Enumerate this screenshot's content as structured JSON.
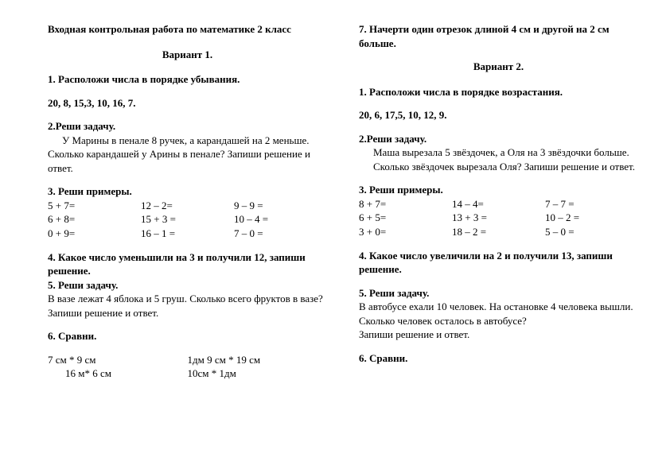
{
  "doc": {
    "title": "Входная контрольная работа по математике 2 класс",
    "variant1": "Вариант 1.",
    "variant2": "Вариант 2.",
    "v1": {
      "t1": "1. Расположи числа в порядке убывания.",
      "t1nums": "20, 8, 15,3, 10, 16, 7.",
      "t2": "2.Реши задачу.",
      "t2body1": "У Марины в пенале 8 ручек, а карандашей на 2 меньше.",
      "t2body2": "Сколько карандашей у Арины в пенале? Запиши решение и ответ.",
      "t3": "3. Реши примеры.",
      "ex1a": "5 + 7=",
      "ex1b": "12 – 2=",
      "ex1c": "9 – 9 =",
      "ex2a": "6 + 8=",
      "ex2b": "15 + 3 =",
      "ex2c": "10 – 4 =",
      "ex3a": "0 + 9=",
      "ex3b": "16 – 1 =",
      "ex3c": "7 – 0 =",
      "t4": "4. Какое число уменьшили на 3 и получили 12, запиши решение.",
      "t5": "5. Реши задачу.",
      "t5body1": "В вазе лежат 4 яблока и 5 груш. Сколько всего фруктов в вазе?",
      "t5body2": "Запиши решение и ответ.",
      "t6": "6. Сравни.",
      "c1a": "7 см * 9 см",
      "c1b": "1дм 9 см * 19 см",
      "c2a": "16 м* 6 см",
      "c2b": "10см * 1дм",
      "t7": "7. Начерти один отрезок длиной 4 см и другой на 2 см больше."
    },
    "v2": {
      "t1": "1. Расположи числа в порядке возрастания.",
      "t1nums": "20, 6, 17,5, 10, 12, 9.",
      "t2": "2.Реши задачу.",
      "t2body1": "Маша вырезала 5 звёздочек, а Оля на 3 звёздочки больше. Сколько звёздочек вырезала Оля? Запиши решение и ответ.",
      "t3": "3. Реши примеры.",
      "ex1a": "8 + 7=",
      "ex1b": "14 – 4=",
      "ex1c": "7 – 7 =",
      "ex2a": "6 + 5=",
      "ex2b": "13 + 3 =",
      "ex2c": "10 – 2 =",
      "ex3a": "3 + 0=",
      "ex3b": "18 – 2 =",
      "ex3c": "5 – 0 =",
      "t4": "4. Какое число увеличили на 2 и получили 13, запиши решение.",
      "t5": "5. Реши задачу.",
      "t5body1": "В автобусе ехали 10 человек. На остановке 4 человека вышли. Сколько человек осталось в автобусе?",
      "t5body2": "Запиши решение и ответ.",
      "t6": "6. Сравни."
    }
  }
}
